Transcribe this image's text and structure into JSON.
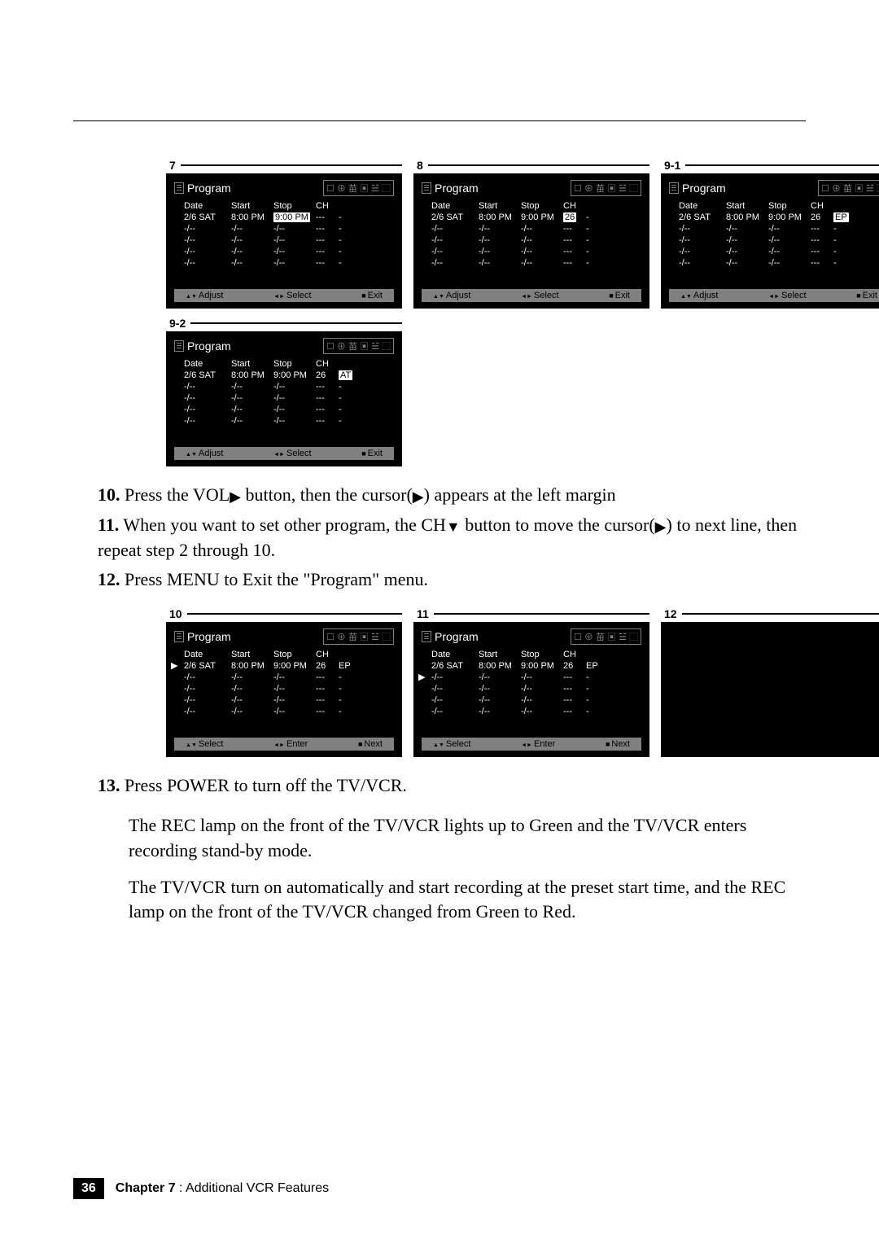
{
  "colors": {
    "screen_bg": "#000000",
    "screen_text": "#ffffff",
    "screen_dim": "#808080",
    "footer_bg": "#808080",
    "page_bg": "#ffffff"
  },
  "screens": {
    "common": {
      "title": "Program",
      "icons": "☐ ⊕ 苗 ▣ ☱ ⬚",
      "headers": {
        "date": "Date",
        "start": "Start",
        "stop": "Stop",
        "ch": "CH"
      },
      "empty_row": {
        "date": "-/--",
        "start": "-/--",
        "stop": "-/--",
        "ch": "---",
        "sp": "-"
      },
      "footer_adjust": {
        "adjust": "Adjust",
        "select": "Select",
        "exit": "Exit"
      },
      "footer_select": {
        "select": "Select",
        "enter": "Enter",
        "next": "Next"
      }
    },
    "s7": {
      "label": "7",
      "row1": {
        "date": "2/6 SAT",
        "start": "8:00 PM",
        "stop": "9:00 PM",
        "ch": "---",
        "sp": "-",
        "highlight": "stop"
      }
    },
    "s8": {
      "label": "8",
      "row1": {
        "date": "2/6 SAT",
        "start": "8:00 PM",
        "stop": "9:00 PM",
        "ch": "26",
        "sp": "-",
        "highlight": "ch"
      }
    },
    "s91": {
      "label": "9-1",
      "row1": {
        "date": "2/6 SAT",
        "start": "8:00 PM",
        "stop": "9:00 PM",
        "ch": "26",
        "sp": "EP",
        "highlight": "sp"
      }
    },
    "s92": {
      "label": "9-2",
      "row1": {
        "date": "2/6 SAT",
        "start": "8:00 PM",
        "stop": "9:00 PM",
        "ch": "26",
        "sp": "AT",
        "highlight": "sp"
      }
    },
    "s10": {
      "label": "10",
      "row1": {
        "date": "2/6 SAT",
        "start": "8:00 PM",
        "stop": "9:00 PM",
        "ch": "26",
        "sp": "EP"
      },
      "cursor_row": 0
    },
    "s11": {
      "label": "11",
      "row1": {
        "date": "2/6 SAT",
        "start": "8:00 PM",
        "stop": "9:00 PM",
        "ch": "26",
        "sp": "EP"
      },
      "cursor_row": 1
    },
    "s12": {
      "label": "12",
      "blank": true
    }
  },
  "instructions": {
    "i10": {
      "num": "10.",
      "text_a": "Press the VOL",
      "text_b": " button, then the cursor(",
      "text_c": ") appears at the left margin"
    },
    "i11": {
      "num": "11.",
      "text_a": "When you want to set other program, the CH",
      "text_b": " button to move the cursor(",
      "text_c": ") to next line, then repeat step 2 through 10."
    },
    "i12": {
      "num": "12.",
      "text": "Press MENU to Exit the \"Program\" menu."
    },
    "i13": {
      "num": "13.",
      "text": "Press POWER to turn off the TV/VCR."
    }
  },
  "body": {
    "p1": "The REC lamp on the front of the TV/VCR lights up to Green and the TV/VCR enters recording stand-by mode.",
    "p2": "The TV/VCR turn on automatically and start recording at the preset start time, and the REC lamp on the front of the TV/VCR changed from Green to Red."
  },
  "footer": {
    "page": "36",
    "chapter_bold": "Chapter 7",
    "chapter_rest": " : Additional VCR Features"
  }
}
